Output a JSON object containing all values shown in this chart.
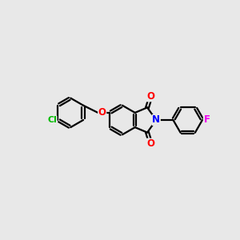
{
  "background_color": "#e8e8e8",
  "bond_color": "#000000",
  "atom_colors": {
    "O": "#ff0000",
    "N": "#0000ff",
    "Cl": "#00bb00",
    "F": "#ee00ee"
  },
  "figsize": [
    3.0,
    3.0
  ],
  "dpi": 100,
  "lw": 1.6,
  "r": 0.62
}
